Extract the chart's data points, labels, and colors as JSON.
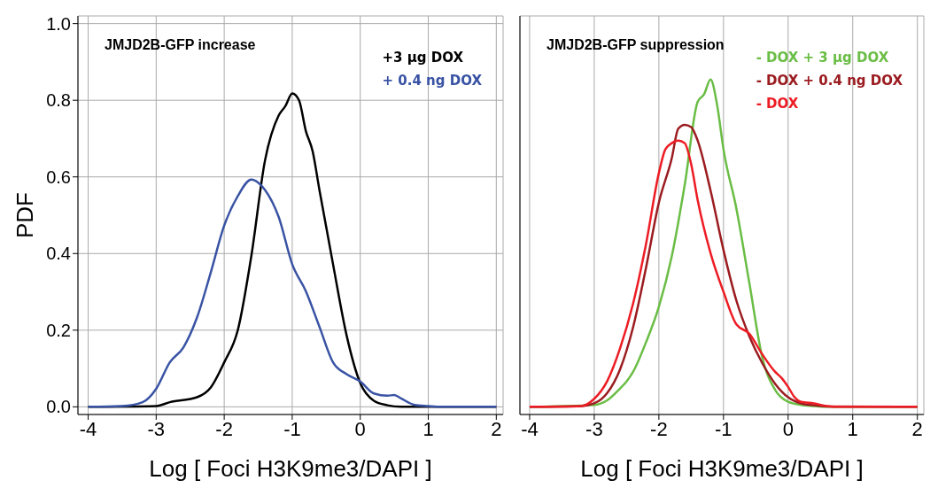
{
  "chart_data": [
    {
      "type": "line",
      "title": "JMJD2B-GFP increase",
      "xlabel": "Log [ Foci H3K9me3/DAPI ]",
      "ylabel": "PDF",
      "xlim": [
        -4.15,
        2.1
      ],
      "xticks": [
        -4,
        -3,
        -2,
        -1,
        0,
        1,
        2
      ],
      "ylim": [
        -0.02,
        1.02
      ],
      "yticks": [
        {
          "value": 0,
          "label": "0.0"
        },
        0.2,
        0.4,
        0.6,
        0.8,
        {
          "value": 1,
          "label": "1.0"
        }
      ],
      "grid": true,
      "legend": "top right",
      "marker": "none",
      "line_style": "solid",
      "series": [
        {
          "name": "+3 μg DOX",
          "color": "#000000",
          "x": [
            -4,
            -3,
            -2.8,
            -2.4,
            -2.2,
            -2,
            -1.8,
            -1.6,
            -1.4,
            -1.2,
            -1.1,
            -1,
            -0.9,
            -0.8,
            -0.7,
            -0.6,
            -0.4,
            -0.2,
            0,
            0.2,
            0.4,
            0.6,
            2
          ],
          "values": [
            0,
            0.002,
            0.012,
            0.025,
            0.05,
            0.116,
            0.2,
            0.395,
            0.643,
            0.76,
            0.785,
            0.818,
            0.8,
            0.72,
            0.667,
            0.566,
            0.372,
            0.186,
            0.062,
            0.016,
            0.004,
            0,
            0
          ]
        },
        {
          "name": "+ 0.4 ng DOX",
          "color": "#3953a4",
          "x": [
            -4,
            -3.5,
            -3.2,
            -3,
            -2.8,
            -2.6,
            -2.4,
            -2.2,
            -2,
            -1.8,
            -1.6,
            -1.5,
            -1.4,
            -1.2,
            -1,
            -0.8,
            -0.6,
            -0.4,
            -0.2,
            0,
            0.2,
            0.4,
            0.5,
            0.6,
            0.8,
            1,
            1.2,
            2
          ],
          "values": [
            0,
            0.002,
            0.012,
            0.047,
            0.116,
            0.155,
            0.233,
            0.349,
            0.473,
            0.55,
            0.593,
            0.585,
            0.566,
            0.496,
            0.372,
            0.302,
            0.209,
            0.116,
            0.085,
            0.066,
            0.035,
            0.029,
            0.031,
            0.022,
            0.005,
            0.002,
            0,
            0
          ]
        }
      ]
    },
    {
      "type": "line",
      "title": "JMJD2B-GFP suppression",
      "xlabel": "Log [ Foci H3K9me3/DAPI ]",
      "xlim": [
        -4.15,
        2.1
      ],
      "xticks": [
        -4,
        -3,
        -2,
        -1,
        0,
        1,
        2
      ],
      "ylim": [
        -0.02,
        1.02
      ],
      "yticks": [
        0,
        0.2,
        0.4,
        0.6,
        0.8,
        1
      ],
      "tick_labels": "x",
      "grid": true,
      "legend": "top right",
      "marker": "none",
      "line_style": "solid",
      "series": [
        {
          "name": "- DOX + 3 μg DOX",
          "color": "#6abd45",
          "x": [
            -4,
            -3,
            -2.8,
            -2.6,
            -2.5,
            -2.4,
            -2.2,
            -2,
            -1.8,
            -1.6,
            -1.4,
            -1.3,
            -1.2,
            -1.1,
            -1,
            -0.8,
            -0.6,
            -0.4,
            -0.2,
            0,
            0.2,
            0.4,
            0.6,
            2
          ],
          "values": [
            0,
            0.005,
            0.017,
            0.048,
            0.066,
            0.091,
            0.168,
            0.261,
            0.393,
            0.579,
            0.796,
            0.816,
            0.854,
            0.789,
            0.672,
            0.517,
            0.323,
            0.129,
            0.044,
            0.013,
            0.005,
            0.002,
            0,
            0
          ]
        },
        {
          "name": "- DOX + 0.4 ng DOX",
          "color": "#9b1c20",
          "x": [
            -4,
            -3.2,
            -3,
            -2.8,
            -2.6,
            -2.4,
            -2.2,
            -2,
            -1.8,
            -1.7,
            -1.6,
            -1.5,
            -1.4,
            -1.2,
            -1,
            -0.8,
            -0.6,
            -0.4,
            -0.2,
            0,
            0.2,
            0.4,
            0.6,
            2
          ],
          "values": [
            0,
            0.002,
            0.009,
            0.036,
            0.098,
            0.207,
            0.362,
            0.533,
            0.649,
            0.726,
            0.736,
            0.73,
            0.695,
            0.564,
            0.409,
            0.277,
            0.184,
            0.114,
            0.06,
            0.025,
            0.009,
            0.004,
            0.001,
            0
          ]
        },
        {
          "name": "- DOX",
          "color": "#ed1c24",
          "x": [
            -4,
            -3.2,
            -3,
            -2.8,
            -2.6,
            -2.4,
            -2.2,
            -2,
            -1.9,
            -1.8,
            -1.7,
            -1.6,
            -1.5,
            -1.4,
            -1.2,
            -1,
            -0.8,
            -0.6,
            -0.4,
            -0.2,
            -0.1,
            0,
            0.1,
            0.2,
            0.4,
            0.6,
            0.8,
            2
          ],
          "values": [
            0,
            0.002,
            0.021,
            0.067,
            0.153,
            0.269,
            0.424,
            0.61,
            0.672,
            0.688,
            0.695,
            0.688,
            0.633,
            0.54,
            0.401,
            0.3,
            0.215,
            0.191,
            0.137,
            0.091,
            0.075,
            0.052,
            0.025,
            0.013,
            0.009,
            0.002,
            0,
            0
          ]
        }
      ]
    }
  ]
}
